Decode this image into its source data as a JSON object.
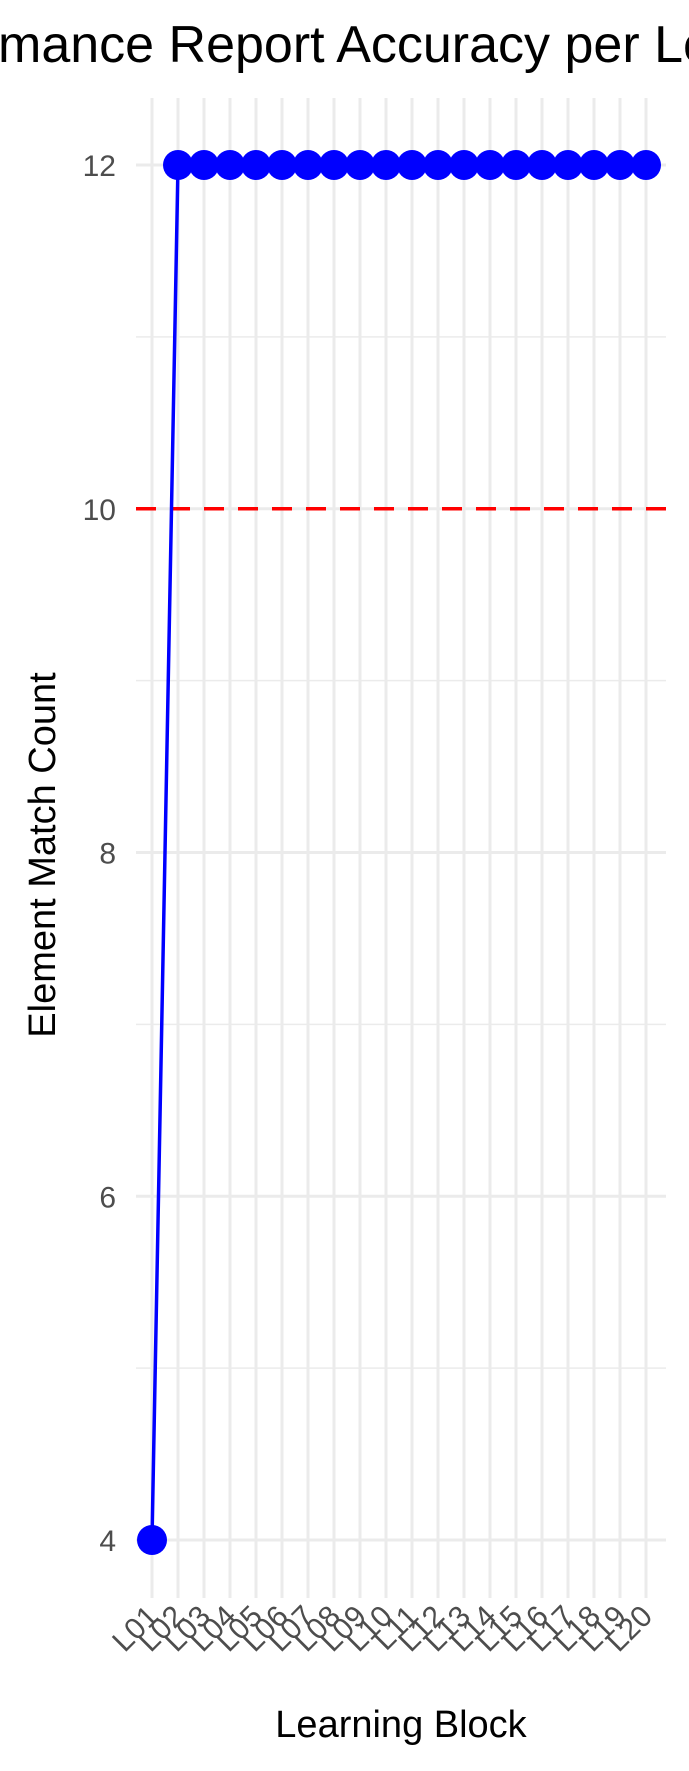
{
  "chart_data": {
    "type": "line",
    "title": "Conformance Report Accuracy per Learning Block",
    "xlabel": "Learning Block",
    "ylabel": "Element Match Count",
    "categories": [
      "L01",
      "L02",
      "L03",
      "L04",
      "L05",
      "L06",
      "L07",
      "L08",
      "L09",
      "L10",
      "L11",
      "L12",
      "L13",
      "L14",
      "L15",
      "L16",
      "L17",
      "L18",
      "L19",
      "L20"
    ],
    "series": [
      {
        "values": [
          4,
          12,
          12,
          12,
          12,
          12,
          12,
          12,
          12,
          12,
          12,
          12,
          12,
          12,
          12,
          12,
          12,
          12,
          12,
          12
        ],
        "color": "#0000ff",
        "markers": true
      }
    ],
    "reference_line": {
      "y": 10,
      "color": "#ff0000",
      "style": "dashed"
    },
    "ylim": [
      3.7,
      12.4
    ],
    "yticks": [
      4,
      6,
      8,
      10,
      12
    ],
    "grid": true,
    "legend": "none"
  }
}
